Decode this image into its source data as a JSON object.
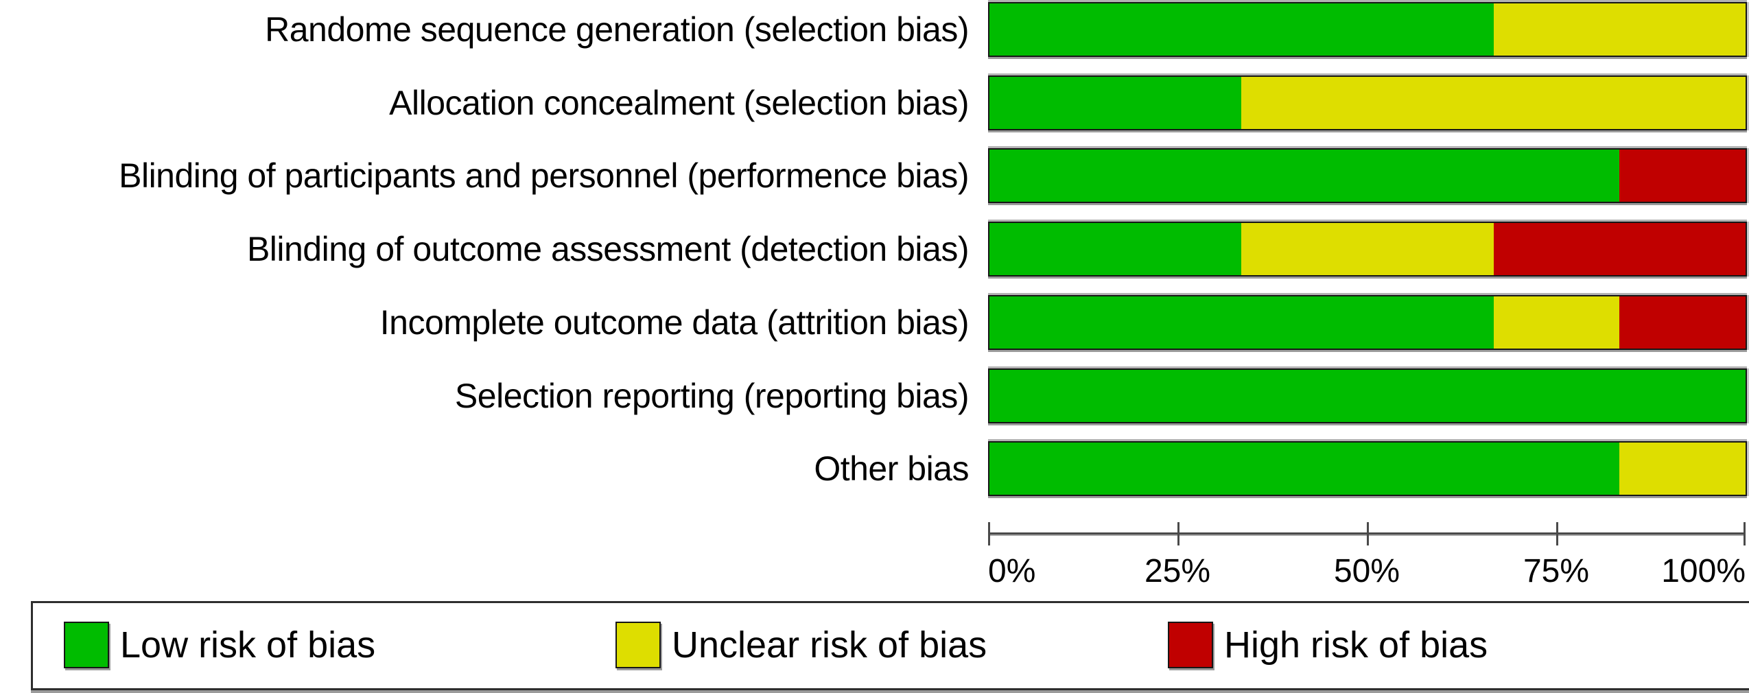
{
  "figure": {
    "background": "#ffffff",
    "text_color": "#000000"
  },
  "chart_data": {
    "type": "bar",
    "orientation": "horizontal-stacked",
    "title": "",
    "xlabel": "",
    "ylabel": "",
    "categories": [
      "Randome sequence generation (selection bias)",
      "Allocation concealment (selection bias)",
      "Blinding of participants and personnel (performence bias)",
      "Blinding of outcome assessment (detection bias)",
      "Incomplete outcome data (attrition bias)",
      "Selection reporting (reporting bias)",
      "Other bias"
    ],
    "series": [
      {
        "name": "Low risk of bias",
        "color": "#00bc00",
        "values": [
          66.67,
          33.33,
          83.33,
          33.33,
          66.67,
          100,
          83.33
        ]
      },
      {
        "name": "Unclear risk of bias",
        "color": "#dede00",
        "values": [
          33.33,
          66.67,
          0,
          33.33,
          16.67,
          0,
          16.67
        ]
      },
      {
        "name": "High risk of bias",
        "color": "#c00000",
        "values": [
          0,
          0,
          16.67,
          33.33,
          16.67,
          0,
          0
        ]
      }
    ],
    "x_range": [
      0,
      100
    ],
    "x_ticks": [
      {
        "label": "0%",
        "value": 0
      },
      {
        "label": "25%",
        "value": 25
      },
      {
        "label": "50%",
        "value": 50
      },
      {
        "label": "75%",
        "value": 75
      },
      {
        "label": "100%",
        "value": 100
      }
    ],
    "grid": false,
    "legend_position": "bottom"
  },
  "legend": {
    "items": [
      {
        "label": "Low risk of bias",
        "color": "#00bc00"
      },
      {
        "label": "Unclear risk of bias",
        "color": "#dede00"
      },
      {
        "label": "High risk of bias",
        "color": "#c00000"
      }
    ]
  }
}
